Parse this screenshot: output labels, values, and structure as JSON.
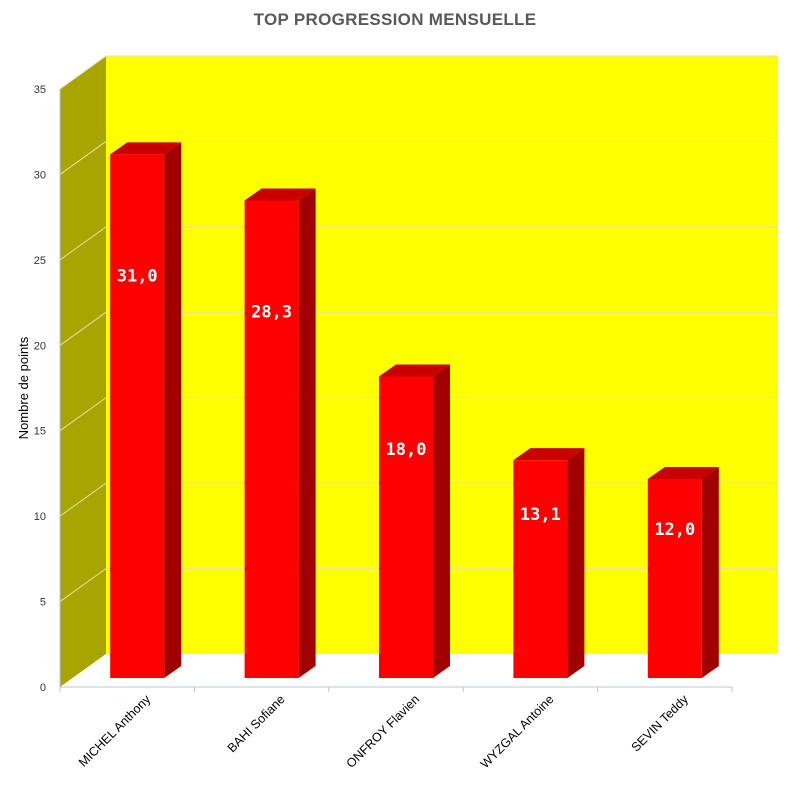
{
  "chart_data": {
    "type": "bar",
    "title": "TOP PROGRESSION MENSUELLE",
    "xlabel": "",
    "ylabel": "Nombre de points",
    "categories": [
      "MICHEL Anthony",
      "BAHI Sofiane",
      "ONFROY Flavien",
      "WYZGAL Antoine",
      "SEVIN Teddy"
    ],
    "values": [
      31.0,
      28.3,
      18.0,
      13.1,
      12.0
    ],
    "data_labels": [
      "31,0",
      "28,3",
      "18,0",
      "13,1",
      "12,0"
    ],
    "ylim": [
      0,
      35
    ],
    "yticks": [
      "0",
      "5",
      "10",
      "15",
      "20",
      "25",
      "30",
      "35"
    ],
    "grid": true,
    "legend": "none",
    "style": "3d",
    "colors": {
      "bar_front": "#ff0000",
      "bar_side": "#a00000",
      "bar_top": "#c80000",
      "back_wall": "#ffff00",
      "side_wall": "#a8a400",
      "floor": "#ffffff",
      "gridline": "#e2e2a8"
    }
  }
}
